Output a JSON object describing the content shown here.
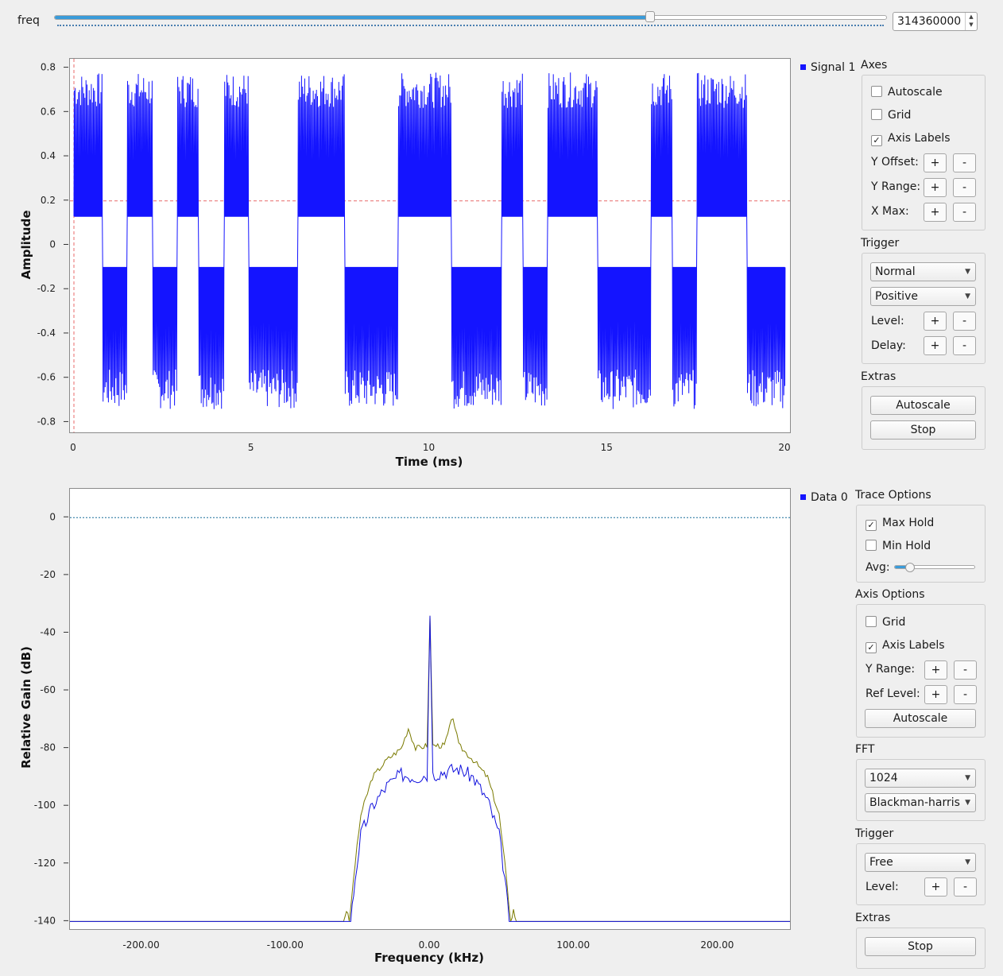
{
  "freq": {
    "label": "freq",
    "value": "314360000",
    "slider_fraction": 0.716
  },
  "time_plot": {
    "legend": "Signal 1",
    "ylabel": "Amplitude",
    "xlabel": "Time (ms)",
    "yticks": [
      "0.8",
      "0.6",
      "0.4",
      "0.2",
      "0",
      "-0.2",
      "-0.4",
      "-0.6",
      "-0.8"
    ],
    "xticks": [
      "0",
      "5",
      "10",
      "15",
      "20"
    ]
  },
  "freq_plot": {
    "legend": "Data 0",
    "ylabel": "Relative Gain (dB)",
    "xlabel": "Frequency (kHz)",
    "yticks": [
      "0",
      "-20",
      "-40",
      "-60",
      "-80",
      "-100",
      "-120",
      "-140"
    ],
    "xticks": [
      "-200.00",
      "-100.00",
      "0.00",
      "100.00",
      "200.00"
    ]
  },
  "chart_data": [
    {
      "type": "line",
      "xlabel": "Time (ms)",
      "ylabel": "Amplitude",
      "xlim": [
        0,
        20
      ],
      "ylim": [
        -0.82,
        0.82
      ],
      "trigger_level": 0.2,
      "series": [
        {
          "name": "Signal 1",
          "color": "#1414ff",
          "high_segments_ms": [
            [
              0,
              0.8
            ],
            [
              1.5,
              2.2
            ],
            [
              2.9,
              3.5
            ],
            [
              4.2,
              4.9
            ],
            [
              6.3,
              7.6
            ],
            [
              9.1,
              10.6
            ],
            [
              12.0,
              12.6
            ],
            [
              13.3,
              14.7
            ],
            [
              16.2,
              16.8
            ],
            [
              17.5,
              18.9
            ]
          ],
          "high_baseline": 0.13,
          "high_peak": 0.7,
          "low_baseline": -0.1,
          "low_trough": -0.65
        }
      ]
    },
    {
      "type": "line",
      "xlabel": "Frequency (kHz)",
      "ylabel": "Relative Gain (dB)",
      "xlim": [
        -250,
        250
      ],
      "ylim": [
        -141,
        10
      ],
      "ref_level": 0,
      "series": [
        {
          "name": "Data 0",
          "color": "#1010dd",
          "points": [
            [
              -250,
              -140
            ],
            [
              -55,
              -140
            ],
            [
              -52,
              -125
            ],
            [
              -48,
              -110
            ],
            [
              -40,
              -100
            ],
            [
              -30,
              -93
            ],
            [
              -20,
              -89
            ],
            [
              -10,
              -90
            ],
            [
              -2,
              -89
            ],
            [
              0,
              -34
            ],
            [
              2,
              -89
            ],
            [
              10,
              -88
            ],
            [
              20,
              -87
            ],
            [
              30,
              -90
            ],
            [
              40,
              -98
            ],
            [
              48,
              -110
            ],
            [
              52,
              -125
            ],
            [
              55,
              -140
            ],
            [
              250,
              -140
            ]
          ]
        },
        {
          "name": "Max Hold",
          "color": "#7a7a00",
          "points": [
            [
              -250,
              -140
            ],
            [
              -60,
              -140
            ],
            [
              -58,
              -136
            ],
            [
              -56,
              -140
            ],
            [
              -52,
              -120
            ],
            [
              -48,
              -103
            ],
            [
              -40,
              -90
            ],
            [
              -30,
              -84
            ],
            [
              -20,
              -80
            ],
            [
              -15,
              -73
            ],
            [
              -10,
              -80
            ],
            [
              -2,
              -79
            ],
            [
              0,
              -34
            ],
            [
              2,
              -79
            ],
            [
              10,
              -79
            ],
            [
              16,
              -69
            ],
            [
              20,
              -79
            ],
            [
              30,
              -84
            ],
            [
              40,
              -90
            ],
            [
              48,
              -103
            ],
            [
              52,
              -120
            ],
            [
              56,
              -140
            ],
            [
              58,
              -136
            ],
            [
              60,
              -140
            ],
            [
              250,
              -140
            ]
          ]
        }
      ]
    }
  ],
  "axes_panel": {
    "title": "Axes",
    "autoscale": {
      "label": "Autoscale",
      "checked": false
    },
    "grid": {
      "label": "Grid",
      "checked": false
    },
    "axis_labels": {
      "label": "Axis Labels",
      "checked": true
    },
    "y_offset": "Y Offset:",
    "y_range": "Y Range:",
    "x_max": "X Max:",
    "plus": "+",
    "minus": "-"
  },
  "trigger_panel": {
    "title": "Trigger",
    "mode": "Normal",
    "slope": "Positive",
    "level": "Level:",
    "delay": "Delay:"
  },
  "extras_panel": {
    "title": "Extras",
    "autoscale": "Autoscale",
    "stop": "Stop"
  },
  "trace_panel": {
    "title": "Trace Options",
    "max_hold": {
      "label": "Max Hold",
      "checked": true
    },
    "min_hold": {
      "label": "Min Hold",
      "checked": false
    },
    "avg": "Avg:",
    "avg_fraction": 0.2
  },
  "axis_options_panel": {
    "title": "Axis Options",
    "grid": {
      "label": "Grid",
      "checked": false
    },
    "axis_labels": {
      "label": "Axis Labels",
      "checked": true
    },
    "y_range": "Y Range:",
    "ref_level": "Ref Level:",
    "autoscale": "Autoscale"
  },
  "fft_panel": {
    "title": "FFT",
    "size": "1024",
    "window": "Blackman-harris"
  },
  "trigger2_panel": {
    "title": "Trigger",
    "mode": "Free",
    "level": "Level:"
  },
  "extras2_panel": {
    "title": "Extras",
    "stop": "Stop"
  }
}
